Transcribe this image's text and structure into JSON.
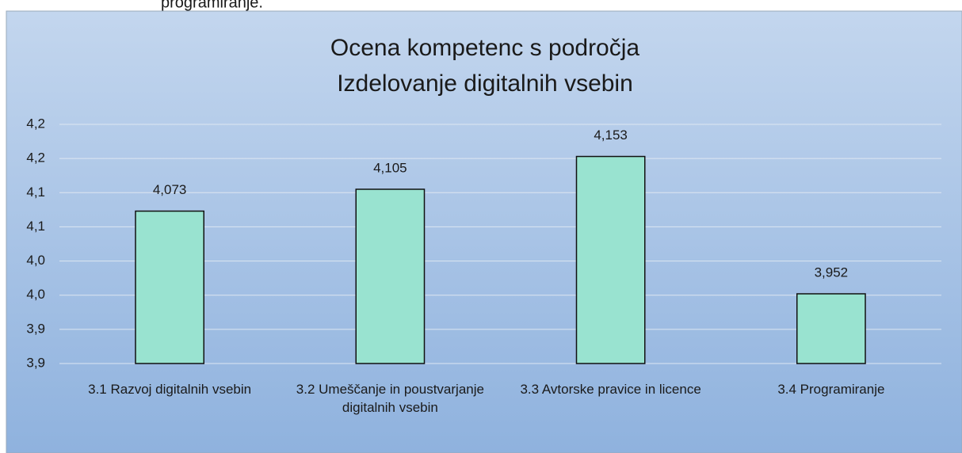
{
  "page_text": "programiranje.",
  "chart_data": {
    "type": "bar",
    "title": [
      "Ocena kompetenc s področja",
      "Izdelovanje digitalnih vsebin"
    ],
    "categories": [
      "3.1 Razvoj digitalnih vsebin",
      "3.2 Umeščanje in poustvarjanje digitalnih vsebin",
      "3.3 Avtorske pravice in licence",
      "3.4 Programiranje"
    ],
    "values": [
      4.073,
      4.105,
      4.153,
      3.952
    ],
    "value_labels": [
      "4,073",
      "4,105",
      "4,153",
      "3,952"
    ],
    "color": "#99e3d0",
    "ylim": [
      3.85,
      4.2
    ],
    "yticks": [
      {
        "value": 3.85,
        "label": "3,9"
      },
      {
        "value": 3.9,
        "label": "3,9"
      },
      {
        "value": 3.95,
        "label": "4,0"
      },
      {
        "value": 4.0,
        "label": "4,0"
      },
      {
        "value": 4.05,
        "label": "4,1"
      },
      {
        "value": 4.1,
        "label": "4,1"
      },
      {
        "value": 4.15,
        "label": "4,2"
      },
      {
        "value": 4.2,
        "label": "4,2"
      }
    ],
    "grid": true
  }
}
